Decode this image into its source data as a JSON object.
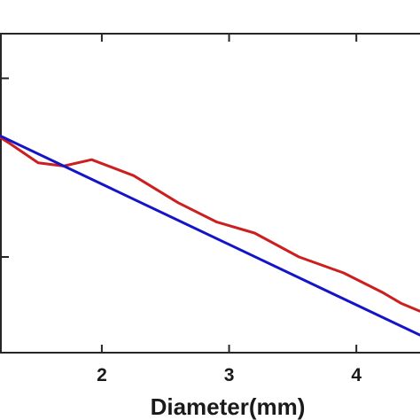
{
  "chart_data": {
    "type": "line",
    "xlabel": "Diameter(mm)",
    "ylabel": "",
    "title": "",
    "xlim": [
      1.2,
      4.5
    ],
    "xticks": [
      2,
      3,
      4
    ],
    "xtick_labels": [
      "2",
      "3",
      "4"
    ],
    "ylim": [
      0,
      1
    ],
    "yticks": [
      0.3,
      0.86
    ],
    "grid": false,
    "series": [
      {
        "color": "#cc1f1f",
        "x": [
          1.2,
          1.28,
          1.5,
          1.7,
          1.92,
          2.25,
          2.6,
          2.9,
          3.2,
          3.55,
          3.9,
          4.2,
          4.35,
          4.5
        ],
        "y": [
          0.675,
          0.655,
          0.595,
          0.585,
          0.605,
          0.555,
          0.47,
          0.41,
          0.375,
          0.3,
          0.25,
          0.19,
          0.155,
          0.13
        ]
      },
      {
        "color": "#1515c8",
        "x": [
          1.2,
          4.5
        ],
        "y": [
          0.68,
          0.055
        ]
      }
    ]
  }
}
